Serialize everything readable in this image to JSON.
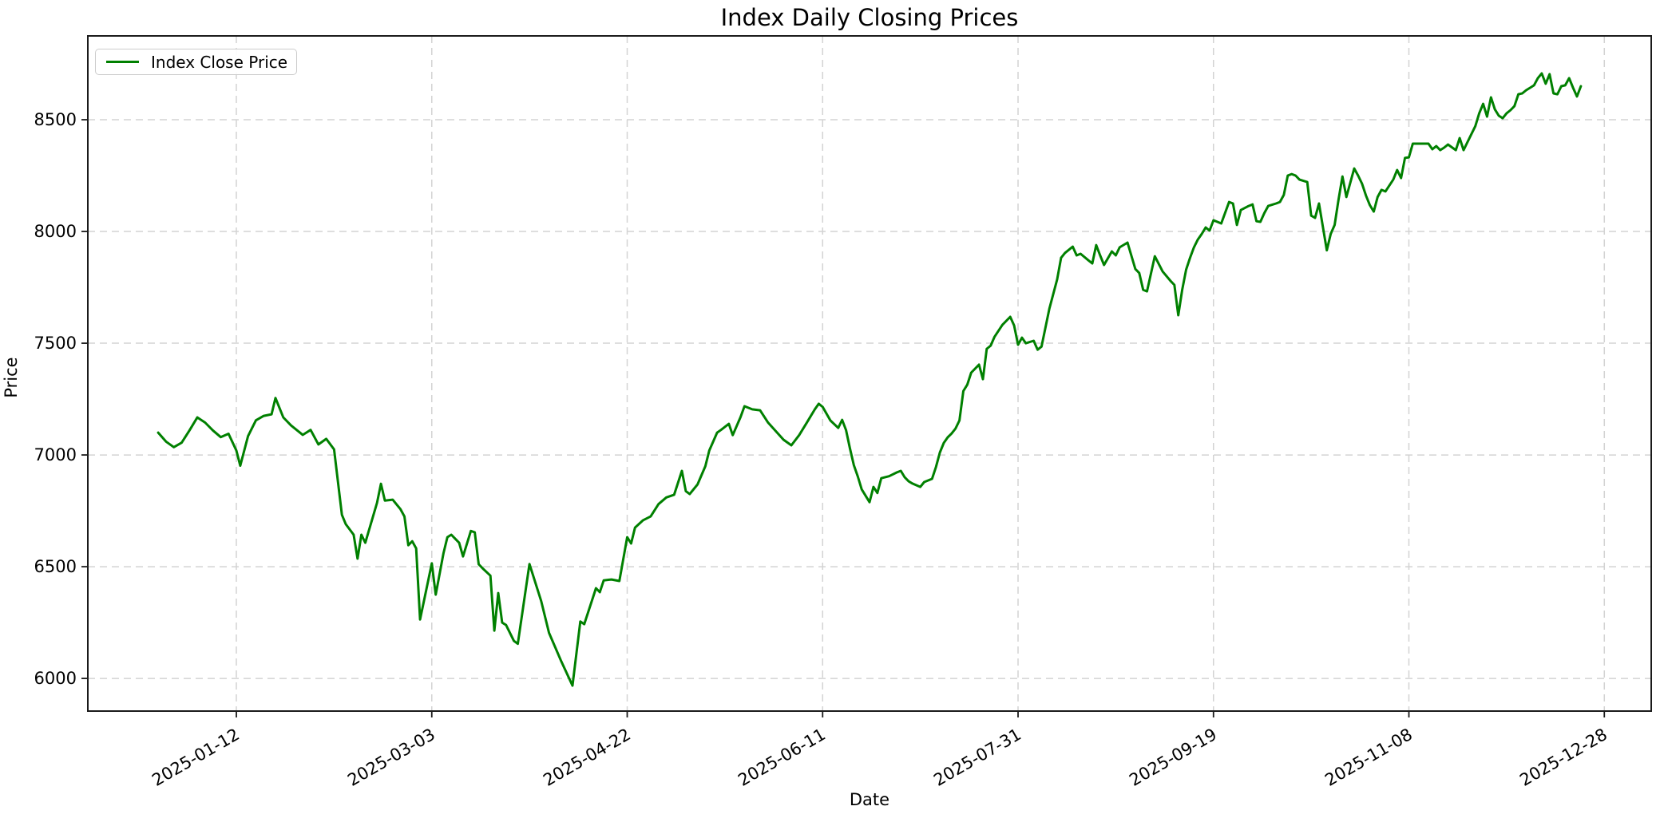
{
  "figure": {
    "title": "Index Daily Closing Prices",
    "xlabel": "Date",
    "ylabel": "Price"
  },
  "legend": {
    "entries": [
      {
        "label": "Index Close Price",
        "color": "#008000"
      }
    ]
  },
  "chart_data": {
    "type": "line",
    "title": "Index Daily Closing Prices",
    "xlabel": "Date",
    "ylabel": "Price",
    "grid": true,
    "grid_style": "dashed",
    "grid_color": "#d3d3d3",
    "background": "#ffffff",
    "legend_position": "upper left",
    "x_tick_labels": [
      "2025-01-12",
      "2025-03-03",
      "2025-04-22",
      "2025-06-11",
      "2025-07-31",
      "2025-09-19",
      "2025-11-08",
      "2025-12-28"
    ],
    "y_ticks": [
      6000,
      6500,
      7000,
      7500,
      8000,
      8500
    ],
    "x_range_days": [
      "2024-12-05",
      "2026-01-09"
    ],
    "y_range": [
      5854,
      8875
    ],
    "series": [
      {
        "name": "Index Close Price",
        "color": "#008000",
        "points": [
          [
            "2024-12-23",
            7100
          ],
          [
            "2024-12-25",
            7060
          ],
          [
            "2024-12-27",
            7035
          ],
          [
            "2024-12-29",
            7055
          ],
          [
            "2024-12-31",
            7110
          ],
          [
            "2025-01-02",
            7168
          ],
          [
            "2025-01-04",
            7145
          ],
          [
            "2025-01-06",
            7110
          ],
          [
            "2025-01-08",
            7080
          ],
          [
            "2025-01-10",
            7095
          ],
          [
            "2025-01-12",
            7020
          ],
          [
            "2025-01-13",
            6952
          ],
          [
            "2025-01-15",
            7085
          ],
          [
            "2025-01-17",
            7155
          ],
          [
            "2025-01-19",
            7175
          ],
          [
            "2025-01-21",
            7182
          ],
          [
            "2025-01-22",
            7255
          ],
          [
            "2025-01-24",
            7168
          ],
          [
            "2025-01-26",
            7132
          ],
          [
            "2025-01-29",
            7090
          ],
          [
            "2025-01-31",
            7112
          ],
          [
            "2025-02-02",
            7047
          ],
          [
            "2025-02-04",
            7072
          ],
          [
            "2025-02-06",
            7025
          ],
          [
            "2025-02-08",
            6732
          ],
          [
            "2025-02-09",
            6690
          ],
          [
            "2025-02-11",
            6643
          ],
          [
            "2025-02-12",
            6536
          ],
          [
            "2025-02-13",
            6643
          ],
          [
            "2025-02-14",
            6607
          ],
          [
            "2025-02-17",
            6786
          ],
          [
            "2025-02-18",
            6871
          ],
          [
            "2025-02-19",
            6796
          ],
          [
            "2025-02-21",
            6800
          ],
          [
            "2025-02-23",
            6757
          ],
          [
            "2025-02-24",
            6725
          ],
          [
            "2025-02-25",
            6596
          ],
          [
            "2025-02-26",
            6614
          ],
          [
            "2025-02-27",
            6582
          ],
          [
            "2025-02-28",
            6264
          ],
          [
            "2025-03-03",
            6515
          ],
          [
            "2025-03-04",
            6375
          ],
          [
            "2025-03-06",
            6560
          ],
          [
            "2025-03-07",
            6632
          ],
          [
            "2025-03-08",
            6643
          ],
          [
            "2025-03-09",
            6625
          ],
          [
            "2025-03-10",
            6607
          ],
          [
            "2025-03-11",
            6546
          ],
          [
            "2025-03-13",
            6660
          ],
          [
            "2025-03-14",
            6654
          ],
          [
            "2025-03-15",
            6511
          ],
          [
            "2025-03-16",
            6493
          ],
          [
            "2025-03-18",
            6460
          ],
          [
            "2025-03-19",
            6214
          ],
          [
            "2025-03-20",
            6382
          ],
          [
            "2025-03-21",
            6250
          ],
          [
            "2025-03-22",
            6239
          ],
          [
            "2025-03-24",
            6168
          ],
          [
            "2025-03-25",
            6155
          ],
          [
            "2025-03-28",
            6512
          ],
          [
            "2025-03-31",
            6346
          ],
          [
            "2025-04-02",
            6204
          ],
          [
            "2025-04-05",
            6082
          ],
          [
            "2025-04-08",
            5968
          ],
          [
            "2025-04-10",
            6255
          ],
          [
            "2025-04-11",
            6243
          ],
          [
            "2025-04-13",
            6350
          ],
          [
            "2025-04-14",
            6404
          ],
          [
            "2025-04-15",
            6386
          ],
          [
            "2025-04-16",
            6439
          ],
          [
            "2025-04-18",
            6443
          ],
          [
            "2025-04-20",
            6436
          ],
          [
            "2025-04-22",
            6632
          ],
          [
            "2025-04-23",
            6604
          ],
          [
            "2025-04-24",
            6675
          ],
          [
            "2025-04-26",
            6707
          ],
          [
            "2025-04-28",
            6725
          ],
          [
            "2025-04-30",
            6780
          ],
          [
            "2025-05-02",
            6810
          ],
          [
            "2025-05-04",
            6822
          ],
          [
            "2025-05-06",
            6929
          ],
          [
            "2025-05-07",
            6838
          ],
          [
            "2025-05-08",
            6825
          ],
          [
            "2025-05-10",
            6868
          ],
          [
            "2025-05-12",
            6950
          ],
          [
            "2025-05-13",
            7020
          ],
          [
            "2025-05-15",
            7100
          ],
          [
            "2025-05-16",
            7112
          ],
          [
            "2025-05-18",
            7139
          ],
          [
            "2025-05-19",
            7089
          ],
          [
            "2025-05-21",
            7170
          ],
          [
            "2025-05-22",
            7218
          ],
          [
            "2025-05-24",
            7204
          ],
          [
            "2025-05-26",
            7200
          ],
          [
            "2025-05-28",
            7146
          ],
          [
            "2025-05-30",
            7107
          ],
          [
            "2025-06-01",
            7068
          ],
          [
            "2025-06-03",
            7043
          ],
          [
            "2025-06-05",
            7089
          ],
          [
            "2025-06-07",
            7146
          ],
          [
            "2025-06-09",
            7204
          ],
          [
            "2025-06-10",
            7229
          ],
          [
            "2025-06-11",
            7215
          ],
          [
            "2025-06-13",
            7154
          ],
          [
            "2025-06-15",
            7121
          ],
          [
            "2025-06-16",
            7157
          ],
          [
            "2025-06-17",
            7111
          ],
          [
            "2025-06-18",
            7029
          ],
          [
            "2025-06-19",
            6954
          ],
          [
            "2025-06-20",
            6904
          ],
          [
            "2025-06-21",
            6846
          ],
          [
            "2025-06-23",
            6789
          ],
          [
            "2025-06-24",
            6857
          ],
          [
            "2025-06-25",
            6830
          ],
          [
            "2025-06-26",
            6896
          ],
          [
            "2025-06-28",
            6905
          ],
          [
            "2025-06-30",
            6922
          ],
          [
            "2025-07-01",
            6929
          ],
          [
            "2025-07-02",
            6900
          ],
          [
            "2025-07-03",
            6882
          ],
          [
            "2025-07-04",
            6872
          ],
          [
            "2025-07-06",
            6857
          ],
          [
            "2025-07-07",
            6879
          ],
          [
            "2025-07-09",
            6893
          ],
          [
            "2025-07-10",
            6946
          ],
          [
            "2025-07-11",
            7011
          ],
          [
            "2025-07-12",
            7054
          ],
          [
            "2025-07-13",
            7079
          ],
          [
            "2025-07-14",
            7096
          ],
          [
            "2025-07-15",
            7118
          ],
          [
            "2025-07-16",
            7154
          ],
          [
            "2025-07-17",
            7286
          ],
          [
            "2025-07-18",
            7314
          ],
          [
            "2025-07-19",
            7368
          ],
          [
            "2025-07-21",
            7404
          ],
          [
            "2025-07-22",
            7339
          ],
          [
            "2025-07-23",
            7475
          ],
          [
            "2025-07-24",
            7489
          ],
          [
            "2025-07-25",
            7529
          ],
          [
            "2025-07-27",
            7582
          ],
          [
            "2025-07-29",
            7618
          ],
          [
            "2025-07-30",
            7579
          ],
          [
            "2025-07-31",
            7493
          ],
          [
            "2025-08-01",
            7525
          ],
          [
            "2025-08-02",
            7500
          ],
          [
            "2025-08-04",
            7511
          ],
          [
            "2025-08-05",
            7471
          ],
          [
            "2025-08-06",
            7485
          ],
          [
            "2025-08-08",
            7654
          ],
          [
            "2025-08-10",
            7786
          ],
          [
            "2025-08-11",
            7882
          ],
          [
            "2025-08-12",
            7904
          ],
          [
            "2025-08-14",
            7932
          ],
          [
            "2025-08-15",
            7893
          ],
          [
            "2025-08-16",
            7900
          ],
          [
            "2025-08-18",
            7871
          ],
          [
            "2025-08-19",
            7857
          ],
          [
            "2025-08-20",
            7939
          ],
          [
            "2025-08-21",
            7893
          ],
          [
            "2025-08-22",
            7850
          ],
          [
            "2025-08-24",
            7911
          ],
          [
            "2025-08-25",
            7893
          ],
          [
            "2025-08-26",
            7929
          ],
          [
            "2025-08-28",
            7950
          ],
          [
            "2025-08-30",
            7832
          ],
          [
            "2025-08-31",
            7814
          ],
          [
            "2025-09-01",
            7739
          ],
          [
            "2025-09-02",
            7732
          ],
          [
            "2025-09-04",
            7889
          ],
          [
            "2025-09-06",
            7821
          ],
          [
            "2025-09-08",
            7779
          ],
          [
            "2025-09-09",
            7761
          ],
          [
            "2025-09-10",
            7625
          ],
          [
            "2025-09-11",
            7739
          ],
          [
            "2025-09-12",
            7829
          ],
          [
            "2025-09-13",
            7882
          ],
          [
            "2025-09-14",
            7929
          ],
          [
            "2025-09-15",
            7964
          ],
          [
            "2025-09-16",
            7989
          ],
          [
            "2025-09-17",
            8018
          ],
          [
            "2025-09-18",
            8004
          ],
          [
            "2025-09-19",
            8050
          ],
          [
            "2025-09-20",
            8043
          ],
          [
            "2025-09-21",
            8036
          ],
          [
            "2025-09-23",
            8132
          ],
          [
            "2025-09-24",
            8125
          ],
          [
            "2025-09-25",
            8029
          ],
          [
            "2025-09-26",
            8096
          ],
          [
            "2025-09-28",
            8114
          ],
          [
            "2025-09-29",
            8121
          ],
          [
            "2025-09-30",
            8046
          ],
          [
            "2025-10-01",
            8043
          ],
          [
            "2025-10-02",
            8082
          ],
          [
            "2025-10-03",
            8114
          ],
          [
            "2025-10-05",
            8125
          ],
          [
            "2025-10-06",
            8132
          ],
          [
            "2025-10-07",
            8164
          ],
          [
            "2025-10-08",
            8250
          ],
          [
            "2025-10-09",
            8257
          ],
          [
            "2025-10-10",
            8250
          ],
          [
            "2025-10-11",
            8232
          ],
          [
            "2025-10-13",
            8221
          ],
          [
            "2025-10-14",
            8071
          ],
          [
            "2025-10-15",
            8061
          ],
          [
            "2025-10-16",
            8125
          ],
          [
            "2025-10-18",
            7916
          ],
          [
            "2025-10-19",
            7989
          ],
          [
            "2025-10-20",
            8029
          ],
          [
            "2025-10-21",
            8143
          ],
          [
            "2025-10-22",
            8246
          ],
          [
            "2025-10-23",
            8154
          ],
          [
            "2025-10-25",
            8282
          ],
          [
            "2025-10-26",
            8250
          ],
          [
            "2025-10-27",
            8214
          ],
          [
            "2025-10-28",
            8161
          ],
          [
            "2025-10-29",
            8118
          ],
          [
            "2025-10-30",
            8089
          ],
          [
            "2025-10-31",
            8154
          ],
          [
            "2025-11-01",
            8186
          ],
          [
            "2025-11-02",
            8179
          ],
          [
            "2025-11-04",
            8232
          ],
          [
            "2025-11-05",
            8275
          ],
          [
            "2025-11-06",
            8239
          ],
          [
            "2025-11-07",
            8329
          ],
          [
            "2025-11-08",
            8332
          ],
          [
            "2025-11-09",
            8393
          ],
          [
            "2025-11-11",
            8393
          ],
          [
            "2025-11-13",
            8393
          ],
          [
            "2025-11-14",
            8368
          ],
          [
            "2025-11-15",
            8382
          ],
          [
            "2025-11-16",
            8364
          ],
          [
            "2025-11-17",
            8375
          ],
          [
            "2025-11-18",
            8389
          ],
          [
            "2025-11-20",
            8364
          ],
          [
            "2025-11-21",
            8418
          ],
          [
            "2025-11-22",
            8364
          ],
          [
            "2025-11-23",
            8400
          ],
          [
            "2025-11-25",
            8471
          ],
          [
            "2025-11-26",
            8529
          ],
          [
            "2025-11-27",
            8571
          ],
          [
            "2025-11-28",
            8514
          ],
          [
            "2025-11-29",
            8600
          ],
          [
            "2025-11-30",
            8546
          ],
          [
            "2025-12-01",
            8518
          ],
          [
            "2025-12-02",
            8507
          ],
          [
            "2025-12-03",
            8529
          ],
          [
            "2025-12-04",
            8543
          ],
          [
            "2025-12-05",
            8561
          ],
          [
            "2025-12-06",
            8614
          ],
          [
            "2025-12-07",
            8618
          ],
          [
            "2025-12-08",
            8632
          ],
          [
            "2025-12-09",
            8643
          ],
          [
            "2025-12-10",
            8654
          ],
          [
            "2025-12-11",
            8686
          ],
          [
            "2025-12-12",
            8707
          ],
          [
            "2025-12-13",
            8661
          ],
          [
            "2025-12-14",
            8704
          ],
          [
            "2025-12-15",
            8618
          ],
          [
            "2025-12-16",
            8614
          ],
          [
            "2025-12-17",
            8650
          ],
          [
            "2025-12-18",
            8654
          ],
          [
            "2025-12-19",
            8686
          ],
          [
            "2025-12-20",
            8643
          ],
          [
            "2025-12-21",
            8604
          ],
          [
            "2025-12-22",
            8650
          ]
        ]
      }
    ]
  }
}
